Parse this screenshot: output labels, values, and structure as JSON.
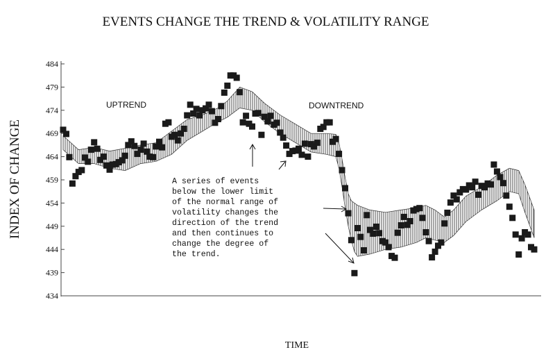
{
  "chart_data": {
    "type": "scatter",
    "title": "EVENTS CHANGE THE TREND & VOLATILITY RANGE",
    "xlabel": "TIME",
    "ylabel": "INDEX OF CHANGE",
    "ylim": [
      434,
      484
    ],
    "yticks": [
      "484",
      "479",
      "474",
      "469",
      "464",
      "459",
      "454",
      "449",
      "444",
      "439",
      "434"
    ],
    "grid": false,
    "legend": "none",
    "annotations": {
      "uptrend": "UPTREND",
      "downtrend": "DOWNTREND",
      "note_lines": [
        "A series of events",
        "below the lower limit",
        "of the normal range of",
        "volatility changes the",
        "direction of the trend",
        "and then continues to",
        "change the degree of",
        "the trend."
      ]
    },
    "x": [
      1,
      2,
      3,
      4,
      5,
      6,
      7,
      8,
      9,
      10,
      11,
      12,
      13,
      14,
      15,
      16,
      17,
      18,
      19,
      20,
      21,
      22,
      23,
      24,
      25,
      26,
      27,
      28,
      29,
      30,
      31,
      32,
      33,
      34,
      35,
      36,
      37,
      38,
      39,
      40,
      41,
      42,
      43,
      44,
      45,
      46,
      47,
      48,
      49,
      50,
      51,
      52,
      53,
      54,
      55,
      56,
      57,
      58,
      59,
      60,
      61,
      62,
      63,
      64,
      65,
      66,
      67,
      68,
      69,
      70,
      71,
      72,
      73,
      74,
      75,
      76,
      77,
      78,
      79,
      80,
      81,
      82,
      83,
      84,
      85,
      86,
      87,
      88,
      89,
      90,
      91,
      92,
      93,
      94,
      95,
      96,
      97,
      98,
      99,
      100,
      101,
      102,
      103,
      104,
      105,
      106,
      107,
      108,
      109,
      110,
      111,
      112,
      113,
      114,
      115,
      116,
      117,
      118,
      119,
      120,
      121,
      122,
      123,
      124,
      125,
      126,
      127,
      128,
      129,
      130,
      131,
      132,
      133,
      134,
      135,
      136,
      137,
      138,
      139,
      140,
      141,
      142,
      143,
      144,
      145,
      146,
      147,
      148,
      149,
      150,
      151,
      152,
      153
    ],
    "series": [
      {
        "values": [
          469.8,
          468.9,
          463.9,
          458.2,
          459.8,
          460.7,
          461.1,
          463.8,
          462.9,
          465.5,
          467.1,
          465.7,
          463.3,
          464.0,
          462.1,
          461.2,
          462.3,
          462.4,
          462.8,
          463.2,
          464.2,
          466.5,
          467.3,
          466.3,
          464.6,
          465.5,
          466.8,
          465.1,
          464.0,
          463.9,
          466.2,
          467.2,
          466.0,
          471.1,
          471.4,
          468.3,
          468.7,
          467.5,
          469.0,
          470.0,
          472.9,
          475.2,
          473.3,
          474.3,
          472.9,
          474.0,
          474.4,
          475.2,
          473.8,
          471.3,
          472.1,
          474.9,
          477.8,
          479.3,
          481.5,
          481.5,
          481.0,
          477.9,
          471.4,
          472.8,
          471.1,
          470.5,
          473.3,
          473.4,
          468.7,
          472.6,
          471.6,
          472.8,
          470.9,
          471.3,
          469.2,
          468.1,
          466.4,
          464.6,
          465.2,
          465.3,
          465.7,
          464.4,
          466.8,
          464.0,
          466.7,
          466.2,
          467.0,
          470.0,
          470.4,
          471.4,
          471.4,
          467.2,
          467.8,
          464.6,
          461.1,
          457.2,
          451.8,
          446.0,
          438.9,
          448.6,
          446.7,
          443.8,
          451.4,
          448.2,
          447.4,
          448.9,
          447.5,
          445.8,
          445.5,
          444.5,
          442.6,
          442.2,
          447.6,
          449.2,
          451.0,
          449.3,
          450.1,
          452.4,
          452.7,
          452.9,
          450.8,
          447.7,
          445.8,
          442.3,
          443.5,
          444.8,
          445.5,
          449.6,
          451.9,
          454.1,
          455.6,
          454.8,
          456.3,
          457.0,
          456.9,
          457.8,
          457.4,
          458.6,
          455.8,
          457.7,
          457.4,
          458.2,
          458.0,
          462.3,
          460.8,
          459.6,
          458.3,
          455.6,
          453.2,
          450.8,
          447.2,
          442.9,
          446.4,
          447.7,
          447.2,
          444.5,
          444.0
        ]
      }
    ],
    "band": {
      "x": [
        1,
        6,
        11,
        16,
        21,
        26,
        31,
        36,
        41,
        46,
        51,
        54,
        58,
        62,
        66,
        71,
        76,
        81,
        86,
        89,
        90,
        91,
        92,
        93,
        94,
        95,
        96,
        100,
        105,
        110,
        115,
        118,
        121,
        124,
        127,
        131,
        136,
        141,
        145,
        148,
        150,
        153
      ],
      "upper": [
        468.5,
        465.5,
        466.0,
        465.2,
        465.8,
        466.5,
        467.0,
        469.5,
        472.0,
        473.0,
        474.5,
        476.0,
        479.0,
        478.0,
        475.5,
        473.0,
        471.0,
        469.0,
        469.0,
        468.8,
        467.0,
        463.5,
        459.5,
        456.0,
        454.5,
        454.0,
        453.5,
        452.5,
        452.0,
        452.5,
        453.0,
        453.5,
        452.5,
        451.0,
        452.5,
        455.5,
        457.5,
        460.0,
        461.5,
        461.0,
        458.0,
        452.5
      ],
      "lower": [
        465.5,
        462.5,
        462.5,
        461.5,
        461.0,
        462.5,
        463.0,
        464.5,
        467.5,
        469.5,
        471.5,
        472.5,
        474.5,
        474.0,
        471.5,
        469.0,
        467.0,
        465.0,
        464.5,
        464.0,
        461.5,
        457.5,
        453.0,
        449.0,
        446.0,
        443.5,
        442.5,
        443.0,
        444.0,
        444.5,
        445.5,
        446.5,
        446.0,
        445.5,
        447.0,
        450.0,
        452.5,
        454.5,
        456.5,
        456.0,
        452.0,
        446.5
      ]
    }
  }
}
